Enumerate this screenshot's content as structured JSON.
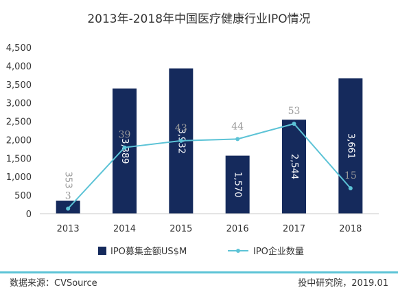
{
  "chart_data": {
    "type": "bar",
    "title": "2013年-2018年中国医疗健康行业IPO情况",
    "categories": [
      "2013",
      "2014",
      "2015",
      "2016",
      "2017",
      "2018"
    ],
    "ylim": [
      0,
      4500
    ],
    "yticks": [
      "0",
      "500",
      "1,000",
      "1,500",
      "2,000",
      "2,500",
      "3,000",
      "3,500",
      "4,000",
      "4,500"
    ],
    "series": [
      {
        "name": "IPO募集金额US$M",
        "type": "bar",
        "color": "#152a5c",
        "values": [
          353,
          3389,
          3932,
          1570,
          2544,
          3661
        ],
        "labels": [
          "353",
          "3,389",
          "3,932",
          "1,570",
          "2,544",
          "3,661"
        ]
      },
      {
        "name": "IPO企业数量",
        "type": "line",
        "color": "#5cc3d6",
        "values": [
          3,
          39,
          43,
          44,
          53,
          15
        ],
        "labels": [
          "3",
          "39",
          "43",
          "44",
          "53",
          "15"
        ]
      }
    ],
    "legend_position": "bottom",
    "grid": false
  },
  "footer": {
    "source": "数据来源：CVSource",
    "credit": "投中研究院，2019.01"
  },
  "colors": {
    "footer_bar": "#5cc3d6"
  }
}
